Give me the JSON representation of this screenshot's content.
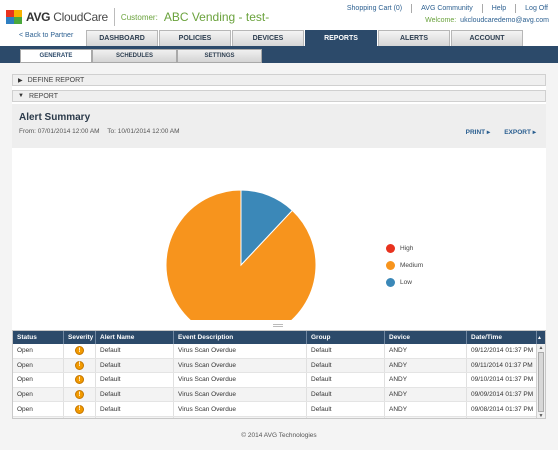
{
  "brand": {
    "name_bold": "AVG",
    "name_rest": " CloudCare"
  },
  "customer": {
    "label": "Customer:",
    "name": "ABC Vending - test-"
  },
  "top_links": [
    "Shopping Cart (0)",
    "AVG Community",
    "Help",
    "Log Off"
  ],
  "welcome": {
    "label": "Welcome:",
    "email": "ukcloudcaredemo@avg.com"
  },
  "back_link": "< Back to Partner",
  "main_tabs": [
    "DASHBOARD",
    "POLICIES",
    "DEVICES",
    "REPORTS",
    "ALERTS",
    "ACCOUNT"
  ],
  "active_main_tab": "REPORTS",
  "sub_tabs": [
    "GENERATE",
    "SCHEDULES",
    "SETTINGS"
  ],
  "active_sub_tab": "GENERATE",
  "sections": {
    "define": "DEFINE REPORT",
    "report": "REPORT"
  },
  "report": {
    "title": "Alert Summary",
    "from": "From:  07/01/2014 12:00 AM",
    "to": "To:  10/01/2014 12:00 AM",
    "print": "PRINT",
    "export": "EXPORT"
  },
  "chart_data": {
    "type": "pie",
    "title": "",
    "slices": [
      {
        "name": "High",
        "value": 0,
        "color": "#e8321e"
      },
      {
        "name": "Medium",
        "value": 88,
        "color": "#f7941d"
      },
      {
        "name": "Low",
        "value": 12,
        "color": "#3b88b8"
      }
    ],
    "legend_position": "right"
  },
  "table": {
    "columns": [
      "Status",
      "Severity",
      "Alert Name",
      "Event Description",
      "Group",
      "Device",
      "Date/Time"
    ],
    "sorted_column": "Date/Time",
    "rows": [
      {
        "status": "Open",
        "severity_icon": "warning-icon",
        "alert": "Default",
        "event": "Virus Scan Overdue",
        "group": "Default",
        "device": "ANDY",
        "datetime": "09/12/2014 01:37 PM"
      },
      {
        "status": "Open",
        "severity_icon": "warning-icon",
        "alert": "Default",
        "event": "Virus Scan Overdue",
        "group": "Default",
        "device": "ANDY",
        "datetime": "09/11/2014 01:37 PM"
      },
      {
        "status": "Open",
        "severity_icon": "warning-icon",
        "alert": "Default",
        "event": "Virus Scan Overdue",
        "group": "Default",
        "device": "ANDY",
        "datetime": "09/10/2014 01:37 PM"
      },
      {
        "status": "Open",
        "severity_icon": "warning-icon",
        "alert": "Default",
        "event": "Virus Scan Overdue",
        "group": "Default",
        "device": "ANDY",
        "datetime": "09/09/2014 01:37 PM"
      },
      {
        "status": "Open",
        "severity_icon": "warning-icon",
        "alert": "Default",
        "event": "Virus Scan Overdue",
        "group": "Default",
        "device": "ANDY",
        "datetime": "09/08/2014 01:37 PM"
      },
      {
        "status": "Open",
        "severity_icon": "warning-icon",
        "alert": "Default",
        "event": "Virus Scan Overdue",
        "group": "Default",
        "device": "ANDY",
        "datetime": "09/07/2014 01:37 PM"
      }
    ]
  },
  "footer": "© 2014 AVG Technologies",
  "colors": {
    "navy": "#2c4a6a",
    "green": "#6aa23c",
    "link": "#2b5f90"
  }
}
